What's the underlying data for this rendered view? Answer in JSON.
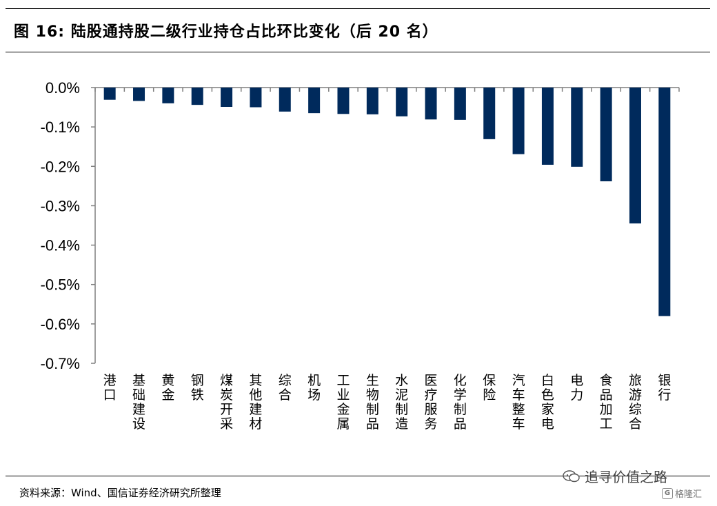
{
  "title": "图 16:  陆股通持股二级行业持仓占比环比变化（后 20 名）",
  "source": "资料来源：Wind、国信证券经济研究所整理",
  "watermark": {
    "text": "追寻价值之路",
    "icon": "wechat-icon",
    "brand": "格隆汇",
    "brand_icon": "gelonghui-logo-icon"
  },
  "chart_data": {
    "type": "bar",
    "title": "",
    "xlabel": "",
    "ylabel": "",
    "bar_color": "#002A5C",
    "ylim": [
      -0.7,
      0.0
    ],
    "yticks": [
      0.0,
      -0.1,
      -0.2,
      -0.3,
      -0.4,
      -0.5,
      -0.6,
      -0.7
    ],
    "ytick_labels": [
      "0.0%",
      "-0.1%",
      "-0.2%",
      "-0.3%",
      "-0.4%",
      "-0.5%",
      "-0.6%",
      "-0.7%"
    ],
    "categories": [
      "港口",
      "基础建设",
      "黄金",
      "钢铁",
      "煤炭开采",
      "其他建材",
      "综合",
      "机场",
      "工业金属",
      "生物制品",
      "水泥制造",
      "医疗服务",
      "化学制品",
      "保险",
      "汽车整车",
      "白色家电",
      "电力",
      "食品加工",
      "旅游综合",
      "银行"
    ],
    "values": [
      -0.031,
      -0.034,
      -0.04,
      -0.044,
      -0.049,
      -0.05,
      -0.061,
      -0.065,
      -0.067,
      -0.068,
      -0.073,
      -0.081,
      -0.082,
      -0.131,
      -0.169,
      -0.196,
      -0.201,
      -0.238,
      -0.345,
      -0.58
    ],
    "grid": false,
    "legend": "none"
  }
}
